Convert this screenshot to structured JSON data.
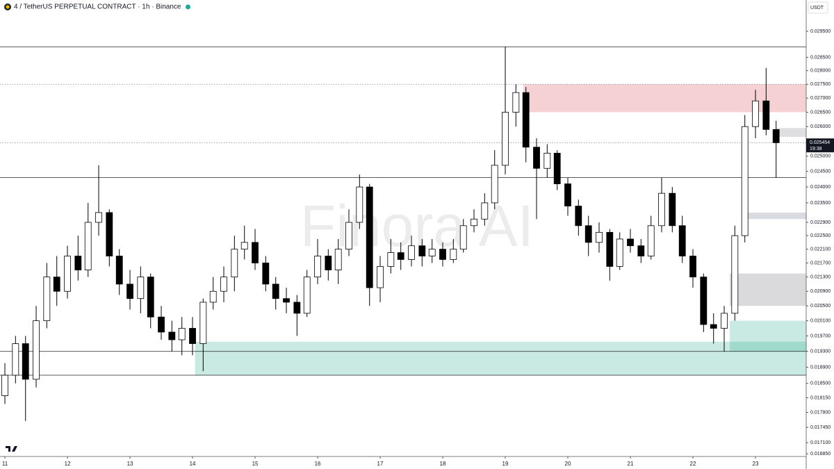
{
  "chart_data": {
    "type": "candlestick",
    "title": "4 / TetherUS PERPETUAL CONTRACT · 1h · Binance",
    "unit": "USDT",
    "watermark": "Finora AI",
    "log_scale": true,
    "up_color": "#ffffff",
    "down_color": "#000000",
    "x": [
      11,
      11.17,
      11.33,
      11.5,
      11.67,
      11.83,
      12,
      12.17,
      12.33,
      12.5,
      12.67,
      12.83,
      13,
      13.17,
      13.33,
      13.5,
      13.67,
      13.83,
      14,
      14.17,
      14.33,
      14.5,
      14.67,
      14.83,
      15,
      15.17,
      15.33,
      15.5,
      15.67,
      15.83,
      16,
      16.17,
      16.33,
      16.5,
      16.67,
      16.83,
      17,
      17.17,
      17.33,
      17.5,
      17.67,
      17.83,
      18,
      18.17,
      18.33,
      18.5,
      18.67,
      18.83,
      19,
      19.17,
      19.33,
      19.5,
      19.67,
      19.83,
      20,
      20.17,
      20.33,
      20.5,
      20.67,
      20.83,
      21,
      21.17,
      21.33,
      21.5,
      21.67,
      21.83,
      22,
      22.17,
      22.33,
      22.5,
      22.67,
      22.83,
      23,
      23.17,
      23.33
    ],
    "open": [
      0.0182,
      0.0187,
      0.0195,
      0.0186,
      0.0201,
      0.0213,
      0.0209,
      0.0219,
      0.0215,
      0.0229,
      0.0232,
      0.0219,
      0.0211,
      0.0207,
      0.0213,
      0.0202,
      0.0198,
      0.0196,
      0.0199,
      0.0195,
      0.0206,
      0.0209,
      0.0213,
      0.0221,
      0.0223,
      0.0217,
      0.0211,
      0.0207,
      0.0206,
      0.0203,
      0.0213,
      0.0219,
      0.0215,
      0.0221,
      0.0229,
      0.024,
      0.021,
      0.0216,
      0.022,
      0.0218,
      0.0222,
      0.0219,
      0.0221,
      0.0218,
      0.0221,
      0.0228,
      0.023,
      0.0235,
      0.0247,
      0.0265,
      0.0272,
      0.0253,
      0.0246,
      0.0251,
      0.0241,
      0.0234,
      0.0228,
      0.0223,
      0.0226,
      0.0216,
      0.0224,
      0.0222,
      0.0219,
      0.0228,
      0.0238,
      0.0228,
      0.0219,
      0.0213,
      0.02,
      0.0199,
      0.0203,
      0.0225,
      0.026,
      0.0269,
      0.0259
    ],
    "high": [
      0.019,
      0.0197,
      0.0197,
      0.0205,
      0.0217,
      0.0219,
      0.0222,
      0.0225,
      0.0235,
      0.0247,
      0.0233,
      0.0221,
      0.0215,
      0.0216,
      0.0214,
      0.0205,
      0.0201,
      0.0202,
      0.0202,
      0.0207,
      0.0213,
      0.0216,
      0.0225,
      0.0228,
      0.0227,
      0.0219,
      0.0213,
      0.021,
      0.0208,
      0.0215,
      0.0224,
      0.0221,
      0.0224,
      0.0233,
      0.0244,
      0.0241,
      0.0219,
      0.0224,
      0.0223,
      0.0225,
      0.0224,
      0.0224,
      0.0223,
      0.0224,
      0.023,
      0.0233,
      0.0238,
      0.0252,
      0.0289,
      0.0275,
      0.0274,
      0.0256,
      0.0254,
      0.0252,
      0.0243,
      0.0236,
      0.0231,
      0.0229,
      0.0227,
      0.0226,
      0.0227,
      0.0224,
      0.0231,
      0.0243,
      0.024,
      0.0231,
      0.0221,
      0.0214,
      0.0203,
      0.0205,
      0.0228,
      0.0264,
      0.0273,
      0.0281,
      0.0262
    ],
    "low": [
      0.018,
      0.0185,
      0.0176,
      0.0184,
      0.0199,
      0.0205,
      0.0207,
      0.0212,
      0.0213,
      0.0225,
      0.0216,
      0.0208,
      0.0204,
      0.0203,
      0.0199,
      0.0196,
      0.0193,
      0.0192,
      0.0192,
      0.0188,
      0.0204,
      0.0206,
      0.0209,
      0.0218,
      0.0215,
      0.0209,
      0.0204,
      0.0203,
      0.0197,
      0.0202,
      0.0211,
      0.0212,
      0.0211,
      0.0219,
      0.0227,
      0.0205,
      0.0206,
      0.0214,
      0.0215,
      0.0216,
      0.0216,
      0.0217,
      0.0216,
      0.0217,
      0.022,
      0.0226,
      0.0228,
      0.0233,
      0.0244,
      0.026,
      0.0248,
      0.023,
      0.0243,
      0.0239,
      0.0231,
      0.0225,
      0.0219,
      0.022,
      0.0212,
      0.0215,
      0.022,
      0.0217,
      0.0218,
      0.0226,
      0.0226,
      0.0217,
      0.021,
      0.0198,
      0.0195,
      0.0193,
      0.0201,
      0.0223,
      0.0256,
      0.0257,
      0.0243
    ],
    "close": [
      0.0187,
      0.0195,
      0.0186,
      0.0201,
      0.0213,
      0.0209,
      0.0219,
      0.0215,
      0.0229,
      0.0232,
      0.0219,
      0.0211,
      0.0207,
      0.0213,
      0.0202,
      0.0198,
      0.0196,
      0.0199,
      0.0195,
      0.0206,
      0.0209,
      0.0213,
      0.0221,
      0.0223,
      0.0217,
      0.0211,
      0.0207,
      0.0206,
      0.0203,
      0.0213,
      0.0219,
      0.0215,
      0.0221,
      0.0229,
      0.024,
      0.021,
      0.0216,
      0.022,
      0.0218,
      0.0222,
      0.0219,
      0.0221,
      0.0218,
      0.0221,
      0.0228,
      0.023,
      0.0235,
      0.0247,
      0.0265,
      0.0272,
      0.0253,
      0.0246,
      0.0251,
      0.0241,
      0.0234,
      0.0228,
      0.0223,
      0.0226,
      0.0216,
      0.0224,
      0.0222,
      0.0219,
      0.0228,
      0.0238,
      0.0228,
      0.0219,
      0.0213,
      0.02,
      0.0199,
      0.0203,
      0.0225,
      0.026,
      0.0269,
      0.0259,
      0.02545
    ],
    "xlim": [
      10.922,
      23.811
    ],
    "xticks": [
      11,
      12,
      13,
      14,
      15,
      16,
      17,
      18,
      19,
      20,
      21,
      22,
      23
    ],
    "ylim": [
      0.01679,
      0.03075
    ],
    "yticks": [
      {
        "value": 0.0295,
        "label": "0.029500"
      },
      {
        "value": 0.0285,
        "label": "0.028500"
      },
      {
        "value": 0.028,
        "label": "0.028000"
      },
      {
        "value": 0.0275,
        "label": "0.027500"
      },
      {
        "value": 0.027,
        "label": "0.027000"
      },
      {
        "value": 0.0265,
        "label": "0.026500"
      },
      {
        "value": 0.026,
        "label": "0.026000"
      },
      {
        "value": 0.025,
        "label": "0.025000"
      },
      {
        "value": 0.0245,
        "label": "0.024500"
      },
      {
        "value": 0.024,
        "label": "0.024000"
      },
      {
        "value": 0.0235,
        "label": "0.023500"
      },
      {
        "value": 0.0229,
        "label": "0.022900"
      },
      {
        "value": 0.0225,
        "label": "0.022500"
      },
      {
        "value": 0.0221,
        "label": "0.022100"
      },
      {
        "value": 0.0217,
        "label": "0.021700"
      },
      {
        "value": 0.0213,
        "label": "0.021300"
      },
      {
        "value": 0.0209,
        "label": "0.020900"
      },
      {
        "value": 0.0205,
        "label": "0.020500"
      },
      {
        "value": 0.0201,
        "label": "0.020100"
      },
      {
        "value": 0.0197,
        "label": "0.019700"
      },
      {
        "value": 0.0193,
        "label": "0.019300"
      },
      {
        "value": 0.0189,
        "label": "0.018900"
      },
      {
        "value": 0.0185,
        "label": "0.018500"
      },
      {
        "value": 0.01815,
        "label": "0.018150"
      },
      {
        "value": 0.0178,
        "label": "0.017800"
      },
      {
        "value": 0.01745,
        "label": "0.017450"
      },
      {
        "value": 0.0171,
        "label": "0.017100"
      },
      {
        "value": 0.01685,
        "label": "0.016850"
      }
    ],
    "last_price": {
      "value": 0.025454,
      "label": "0.025454"
    },
    "countdown": "19:38",
    "levels": [
      {
        "value": 0.0289,
        "style": "solid"
      },
      {
        "value": 0.0275,
        "style": "dotted"
      },
      {
        "value": 0.02545,
        "style": "dotted"
      },
      {
        "value": 0.0243,
        "style": "solid"
      },
      {
        "value": 0.0193,
        "style": "solid"
      },
      {
        "value": 0.0187,
        "style": "solid"
      }
    ],
    "zones": [
      {
        "from": 0.0265,
        "to": 0.0275,
        "x_start": 19.29,
        "color": "rgba(220,90,100,0.28)"
      },
      {
        "from": 0.02565,
        "to": 0.02595,
        "x_start": 23.34,
        "color": "rgba(150,150,160,0.3)"
      },
      {
        "from": 0.023,
        "to": 0.0232,
        "x_start": 22.79,
        "color": "rgba(150,150,170,0.35)"
      },
      {
        "from": 0.0205,
        "to": 0.0214,
        "x_start": 22.59,
        "color": "rgba(150,150,155,0.35)"
      },
      {
        "from": 0.0193,
        "to": 0.0201,
        "x_start": 22.59,
        "color": "rgba(40,170,140,0.25)"
      },
      {
        "from": 0.0187,
        "to": 0.01955,
        "x_start": 14.04,
        "color": "rgba(40,170,140,0.25)"
      }
    ]
  }
}
